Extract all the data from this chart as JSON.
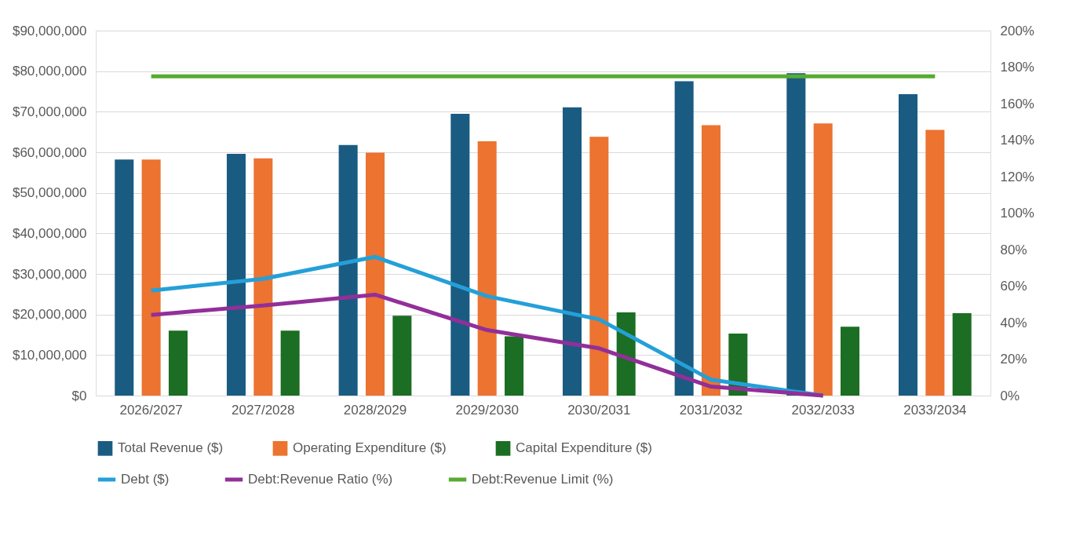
{
  "chart_data": {
    "type": "bar",
    "categories": [
      "2026/2027",
      "2027/2028",
      "2028/2029",
      "2029/2030",
      "2030/2031",
      "2031/2032",
      "2032/2033",
      "2033/2034"
    ],
    "series": [
      {
        "name": "Total Revenue ($)",
        "color": "#1a5b82",
        "values": [
          58200000,
          59600000,
          61800000,
          69500000,
          71100000,
          77500000,
          79500000,
          74300000
        ]
      },
      {
        "name": "Operating Expenditure ($)",
        "color": "#ec7330",
        "values": [
          58200000,
          58500000,
          59900000,
          62700000,
          63800000,
          66700000,
          67100000,
          65500000
        ]
      },
      {
        "name": "Capital Expenditure ($)",
        "color": "#1b6e23",
        "values": [
          16000000,
          16000000,
          19700000,
          14600000,
          20500000,
          15300000,
          17000000,
          20300000
        ]
      },
      {
        "name": "Debt ($)",
        "type": "line",
        "color": "#24a0d8",
        "values": [
          25900000,
          28800000,
          34200000,
          24500000,
          18800000,
          3900000,
          0,
          null
        ]
      },
      {
        "name": "Debt:Revenue Ratio (%)",
        "type": "line",
        "axis": "y2",
        "color": "#922f99",
        "values": [
          44.2,
          49.4,
          55.3,
          35.9,
          25.9,
          4.9,
          0,
          null
        ]
      },
      {
        "name": "Debt:Revenue Limit (%)",
        "type": "line",
        "axis": "y2",
        "color": "#57ab31",
        "values": [
          175,
          175,
          175,
          175,
          175,
          175,
          175,
          175
        ]
      }
    ],
    "ylim": [
      0,
      90000000
    ],
    "yticks": [
      {
        "value": 0,
        "label": "$0"
      },
      {
        "value": 10000000,
        "label": "$10,000,000"
      },
      {
        "value": 20000000,
        "label": "$20,000,000"
      },
      {
        "value": 30000000,
        "label": "$30,000,000"
      },
      {
        "value": 40000000,
        "label": "$40,000,000"
      },
      {
        "value": 50000000,
        "label": "$50,000,000"
      },
      {
        "value": 60000000,
        "label": "$60,000,000"
      },
      {
        "value": 70000000,
        "label": "$70,000,000"
      },
      {
        "value": 80000000,
        "label": "$80,000,000"
      },
      {
        "value": 90000000,
        "label": "$90,000,000"
      }
    ],
    "y2lim": [
      0,
      200
    ],
    "y2ticks": [
      {
        "value": 0,
        "label": "0%"
      },
      {
        "value": 20,
        "label": "20%"
      },
      {
        "value": 40,
        "label": "40%"
      },
      {
        "value": 60,
        "label": "60%"
      },
      {
        "value": 80,
        "label": "80%"
      },
      {
        "value": 100,
        "label": "100%"
      },
      {
        "value": 120,
        "label": "120%"
      },
      {
        "value": 140,
        "label": "140%"
      },
      {
        "value": 160,
        "label": "160%"
      },
      {
        "value": 180,
        "label": "180%"
      },
      {
        "value": 200,
        "label": "200%"
      }
    ],
    "grid": "y",
    "legend": "bottom",
    "marker": "none",
    "line_style": "solid"
  }
}
